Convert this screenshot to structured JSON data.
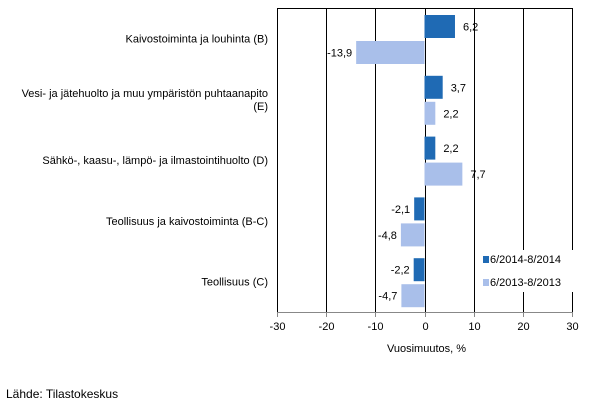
{
  "chart_data": {
    "type": "bar",
    "orientation": "horizontal",
    "categories": [
      [
        "Kaivostoiminta ja louhinta (B)"
      ],
      [
        "Vesi- ja jätehuolto ja muu ympäristön puhtaanapito",
        "(E)"
      ],
      [
        "Sähkö-, kaasu-, lämpö- ja ilmastointihuolto (D)"
      ],
      [
        "Teollisuus ja kaivostoiminta (B-C)"
      ],
      [
        "Teollisuus (C)"
      ]
    ],
    "series": [
      {
        "name": "6/2014-8/2014",
        "color": "#1f6ab4",
        "values": [
          6.2,
          3.7,
          2.2,
          -2.1,
          -2.2
        ],
        "labels": [
          "6,2",
          "3,7",
          "2,2",
          "-2,1",
          "-2,2"
        ]
      },
      {
        "name": "6/2013-8/2013",
        "color": "#a9bfea",
        "values": [
          -13.9,
          2.2,
          7.7,
          -4.8,
          -4.7
        ],
        "labels": [
          "-13,9",
          "2,2",
          "7,7",
          "-4,8",
          "-4,7"
        ]
      }
    ],
    "xlim": [
      -30,
      30
    ],
    "xticks": [
      "-30",
      "-20",
      "-10",
      "0",
      "10",
      "20",
      "30"
    ],
    "xlabel": "Vuosimuutos, %",
    "grid": "vertical",
    "legend": "bottom-right"
  },
  "source": "Lähde: Tilastokeskus"
}
